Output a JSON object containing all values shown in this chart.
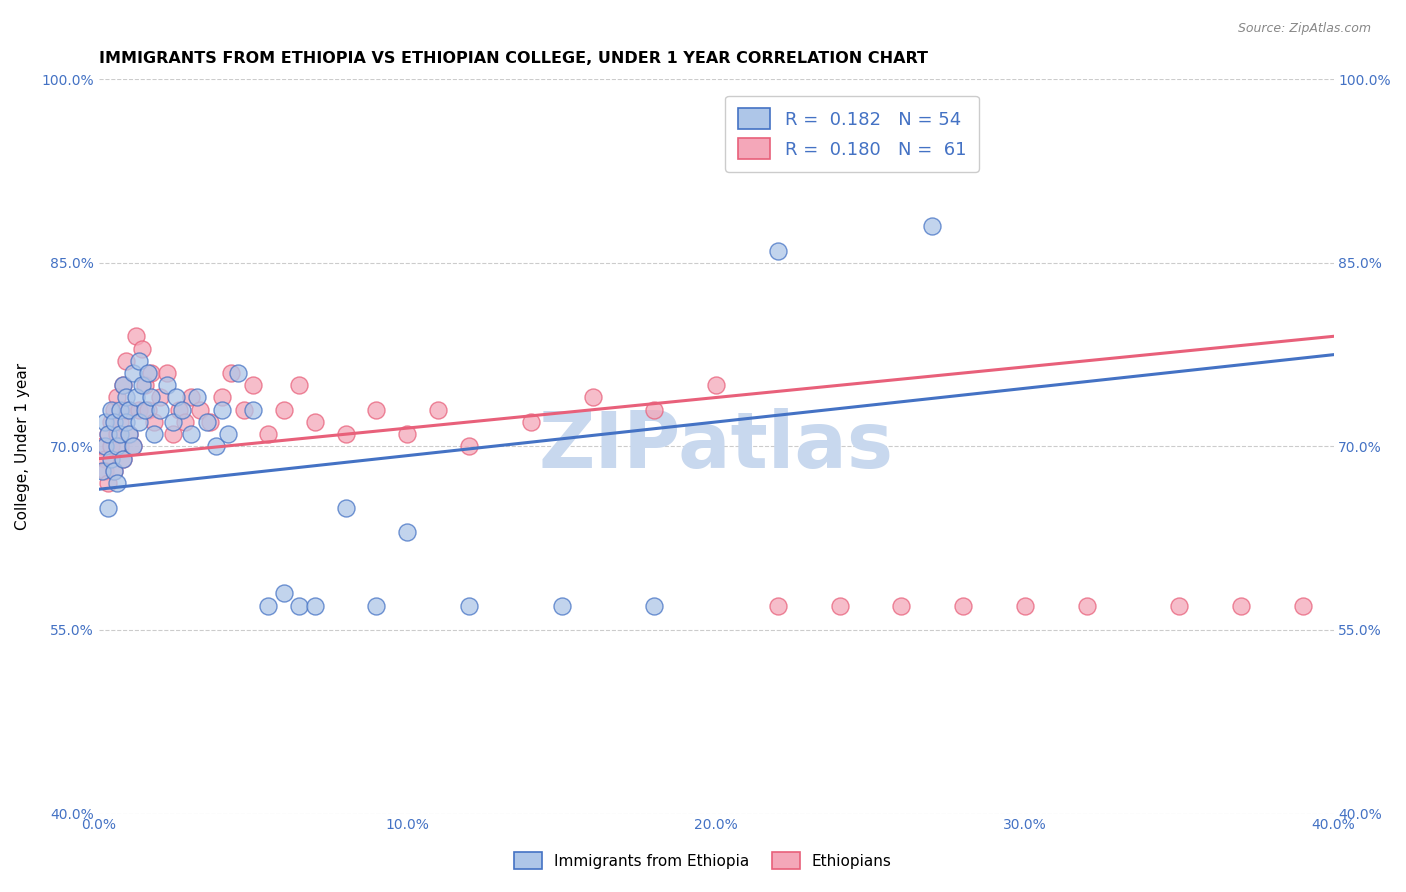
{
  "title": "IMMIGRANTS FROM ETHIOPIA VS ETHIOPIAN COLLEGE, UNDER 1 YEAR CORRELATION CHART",
  "source": "Source: ZipAtlas.com",
  "ylabel": "College, Under 1 year",
  "xlim": [
    0.0,
    0.4
  ],
  "ylim": [
    0.4,
    1.0
  ],
  "xtick_labels": [
    "0.0%",
    "10.0%",
    "20.0%",
    "30.0%",
    "40.0%"
  ],
  "xtick_vals": [
    0.0,
    0.1,
    0.2,
    0.3,
    0.4
  ],
  "ytick_labels": [
    "40.0%",
    "55.0%",
    "70.0%",
    "85.0%",
    "100.0%"
  ],
  "ytick_vals": [
    0.4,
    0.55,
    0.7,
    0.85,
    1.0
  ],
  "r_blue": 0.182,
  "n_blue": 54,
  "r_pink": 0.18,
  "n_pink": 61,
  "blue_color": "#aec6e8",
  "pink_color": "#f4a7b9",
  "line_blue": "#4472c4",
  "line_pink": "#e8607a",
  "watermark": "ZIPatlas",
  "watermark_color": "#c8d8ee",
  "blue_scatter_x": [
    0.001,
    0.002,
    0.002,
    0.003,
    0.003,
    0.004,
    0.004,
    0.005,
    0.005,
    0.006,
    0.006,
    0.007,
    0.007,
    0.008,
    0.008,
    0.009,
    0.009,
    0.01,
    0.01,
    0.011,
    0.011,
    0.012,
    0.013,
    0.013,
    0.014,
    0.015,
    0.016,
    0.017,
    0.018,
    0.02,
    0.022,
    0.024,
    0.025,
    0.027,
    0.03,
    0.032,
    0.035,
    0.038,
    0.04,
    0.042,
    0.045,
    0.05,
    0.055,
    0.06,
    0.065,
    0.07,
    0.08,
    0.09,
    0.1,
    0.12,
    0.15,
    0.18,
    0.22,
    0.27
  ],
  "blue_scatter_y": [
    0.68,
    0.7,
    0.72,
    0.65,
    0.71,
    0.69,
    0.73,
    0.68,
    0.72,
    0.7,
    0.67,
    0.73,
    0.71,
    0.75,
    0.69,
    0.72,
    0.74,
    0.71,
    0.73,
    0.7,
    0.76,
    0.74,
    0.77,
    0.72,
    0.75,
    0.73,
    0.76,
    0.74,
    0.71,
    0.73,
    0.75,
    0.72,
    0.74,
    0.73,
    0.71,
    0.74,
    0.72,
    0.7,
    0.73,
    0.71,
    0.76,
    0.73,
    0.57,
    0.58,
    0.57,
    0.57,
    0.65,
    0.57,
    0.63,
    0.57,
    0.57,
    0.57,
    0.86,
    0.88
  ],
  "pink_scatter_x": [
    0.001,
    0.002,
    0.002,
    0.003,
    0.003,
    0.004,
    0.004,
    0.005,
    0.005,
    0.006,
    0.006,
    0.007,
    0.007,
    0.008,
    0.008,
    0.009,
    0.009,
    0.01,
    0.01,
    0.011,
    0.012,
    0.013,
    0.014,
    0.015,
    0.016,
    0.017,
    0.018,
    0.02,
    0.022,
    0.024,
    0.026,
    0.028,
    0.03,
    0.033,
    0.036,
    0.04,
    0.043,
    0.047,
    0.05,
    0.055,
    0.06,
    0.065,
    0.07,
    0.08,
    0.09,
    0.1,
    0.11,
    0.12,
    0.14,
    0.16,
    0.18,
    0.2,
    0.22,
    0.24,
    0.26,
    0.28,
    0.3,
    0.32,
    0.35,
    0.37,
    0.39
  ],
  "pink_scatter_y": [
    0.7,
    0.69,
    0.68,
    0.71,
    0.67,
    0.7,
    0.72,
    0.68,
    0.73,
    0.71,
    0.74,
    0.7,
    0.72,
    0.75,
    0.69,
    0.73,
    0.77,
    0.71,
    0.73,
    0.7,
    0.79,
    0.73,
    0.78,
    0.75,
    0.73,
    0.76,
    0.72,
    0.74,
    0.76,
    0.71,
    0.73,
    0.72,
    0.74,
    0.73,
    0.72,
    0.74,
    0.76,
    0.73,
    0.75,
    0.71,
    0.73,
    0.75,
    0.72,
    0.71,
    0.73,
    0.71,
    0.73,
    0.7,
    0.72,
    0.74,
    0.73,
    0.75,
    0.57,
    0.57,
    0.57,
    0.57,
    0.57,
    0.57,
    0.57,
    0.57,
    0.57
  ],
  "title_fontsize": 11.5,
  "axis_label_fontsize": 11,
  "tick_fontsize": 10,
  "legend_fontsize": 13
}
